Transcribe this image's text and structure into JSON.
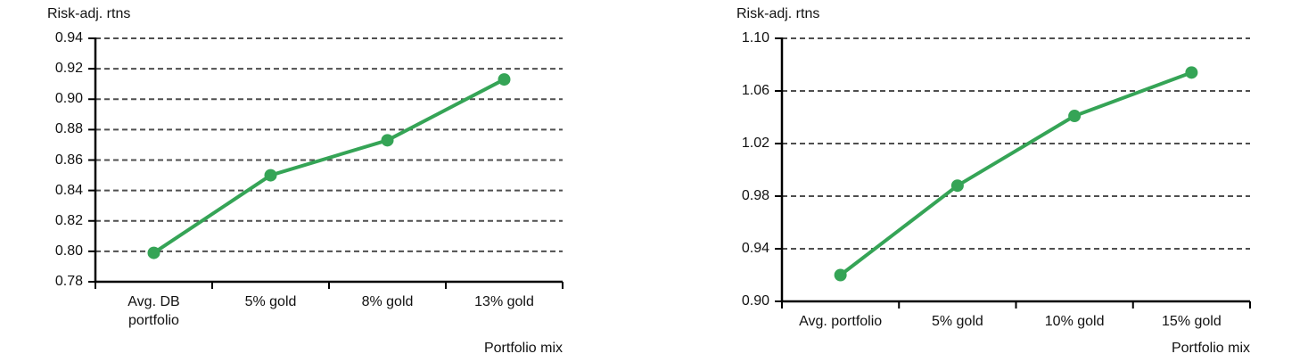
{
  "page": {
    "background_color": "#ffffff"
  },
  "chart_data": [
    {
      "type": "line",
      "title": "Risk-adj. rtns",
      "xlabel": "Portfolio mix",
      "ylabel": "",
      "categories": [
        "Avg. DB\nportfolio",
        "5% gold",
        "8% gold",
        "13% gold"
      ],
      "values": [
        0.799,
        0.85,
        0.873,
        0.913
      ],
      "ylim": [
        0.78,
        0.94
      ],
      "ytick_step": 0.02,
      "tick_decimals": 2,
      "grid": "horizontal-dashed",
      "legend": "none",
      "line_color": "#35a456",
      "marker_color": "#35a456",
      "grid_color": "#4f4f4f",
      "axis_color": "#000000"
    },
    {
      "type": "line",
      "title": "Risk-adj. rtns",
      "xlabel": "Portfolio mix",
      "ylabel": "",
      "categories": [
        "Avg. portfolio",
        "5% gold",
        "10% gold",
        "15% gold"
      ],
      "values": [
        0.92,
        0.988,
        1.041,
        1.074
      ],
      "ylim": [
        0.9,
        1.1
      ],
      "ytick_step": 0.04,
      "tick_decimals": 2,
      "grid": "horizontal-dashed",
      "legend": "none",
      "line_color": "#35a456",
      "marker_color": "#35a456",
      "grid_color": "#4f4f4f",
      "axis_color": "#000000"
    }
  ]
}
